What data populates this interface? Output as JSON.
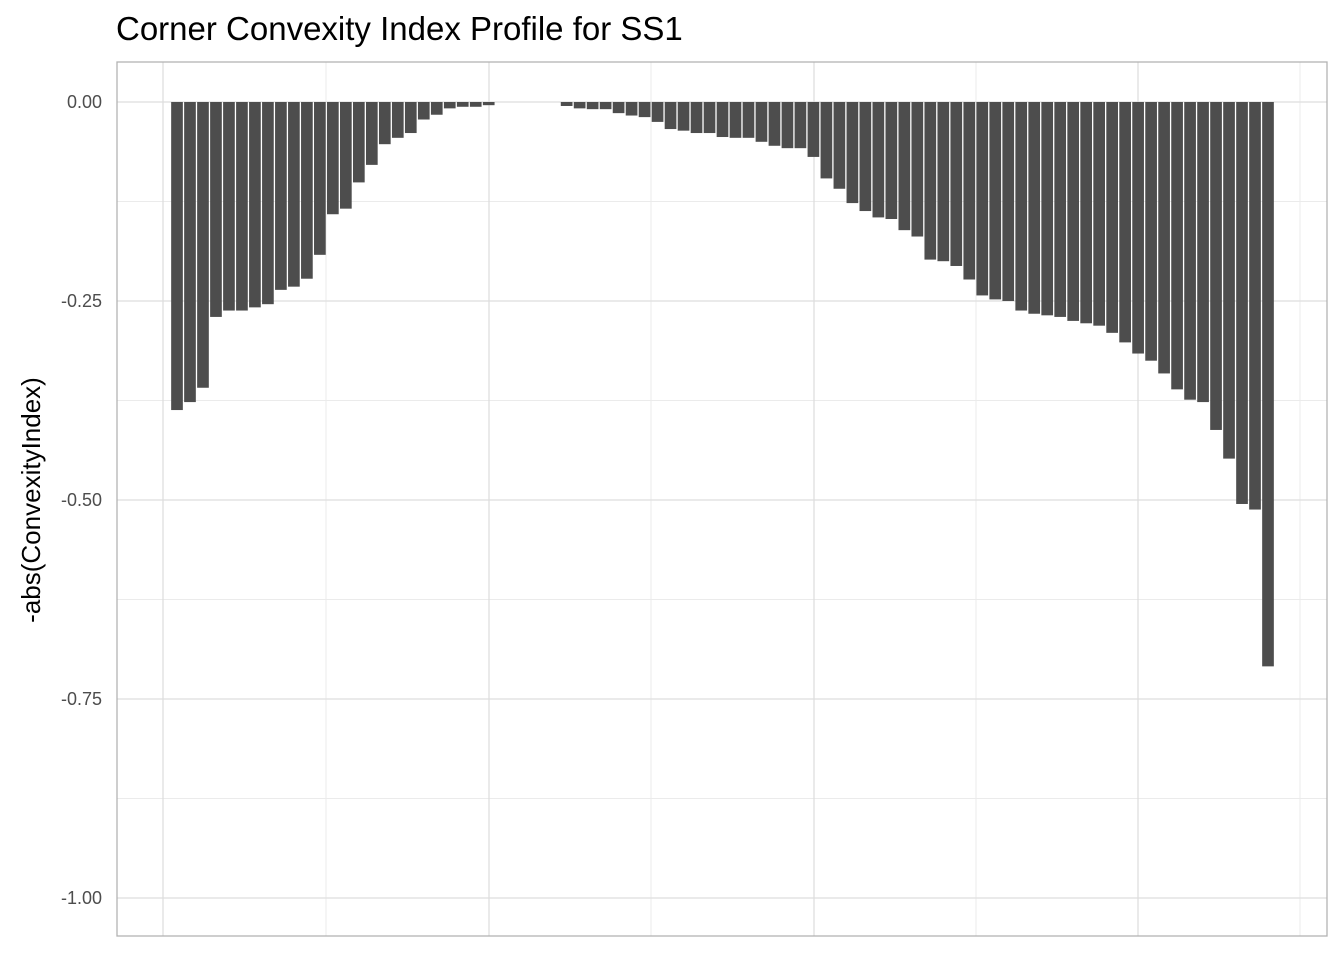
{
  "chart_data": {
    "type": "bar",
    "title": "Corner Convexity Index Profile for SS1",
    "xlabel": "",
    "ylabel": "-abs(ConvexityIndex)",
    "ylim": [
      -1.05,
      0.05
    ],
    "yticks": [
      0,
      -0.25,
      -0.5,
      -0.75,
      -1
    ],
    "ytick_labels": [
      "0.00",
      "-0.25",
      "-0.50",
      "-0.75",
      "-1.00"
    ],
    "grid": true,
    "bar_color": "#4d4d4d",
    "values": [
      -0.387,
      -0.377,
      -0.359,
      -0.27,
      -0.262,
      -0.262,
      -0.258,
      -0.254,
      -0.236,
      -0.232,
      -0.222,
      -0.192,
      -0.141,
      -0.134,
      -0.101,
      -0.079,
      -0.053,
      -0.045,
      -0.039,
      -0.022,
      -0.016,
      -0.008,
      -0.006,
      -0.006,
      -0.004,
      0,
      0,
      0,
      0,
      0,
      -0.005,
      -0.008,
      -0.009,
      -0.009,
      -0.014,
      -0.017,
      -0.019,
      -0.025,
      -0.034,
      -0.036,
      -0.039,
      -0.039,
      -0.044,
      -0.045,
      -0.045,
      -0.05,
      -0.055,
      -0.058,
      -0.058,
      -0.069,
      -0.096,
      -0.109,
      -0.127,
      -0.137,
      -0.145,
      -0.147,
      -0.161,
      -0.169,
      -0.198,
      -0.2,
      -0.206,
      -0.223,
      -0.243,
      -0.248,
      -0.25,
      -0.262,
      -0.266,
      -0.268,
      -0.27,
      -0.275,
      -0.278,
      -0.281,
      -0.29,
      -0.302,
      -0.316,
      -0.325,
      -0.341,
      -0.361,
      -0.374,
      -0.377,
      -0.412,
      -0.448,
      -0.505,
      -0.512,
      -0.709
    ]
  }
}
